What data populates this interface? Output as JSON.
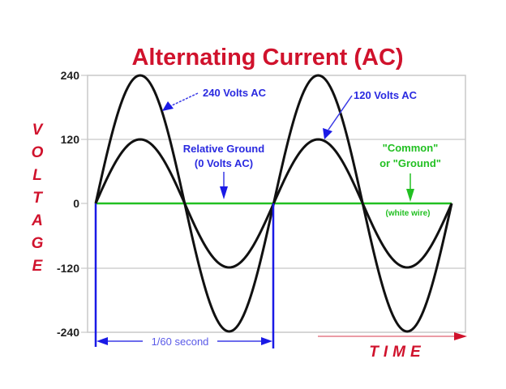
{
  "chart_data": {
    "type": "line",
    "title": "Alternating Current (AC)",
    "xlabel": "TIME",
    "ylabel": "VOLTAGE",
    "yticks": [
      "240",
      "120",
      "0",
      "-120",
      "-240"
    ],
    "ylim": [
      -240,
      240
    ],
    "x_unit": "cycles (1 cycle = 1/60 second)",
    "xlim": [
      0,
      2
    ],
    "grid": true,
    "series": [
      {
        "name": "240 Volts AC",
        "amplitude": 240,
        "cycles": 2,
        "color": "#111111",
        "x": [
          0,
          0.25,
          0.5,
          0.75,
          1.0,
          1.25,
          1.5,
          1.75,
          2.0
        ],
        "values": [
          0,
          240,
          0,
          -240,
          0,
          240,
          0,
          -240,
          0
        ]
      },
      {
        "name": "120 Volts AC",
        "amplitude": 120,
        "cycles": 2,
        "color": "#111111",
        "x": [
          0,
          0.25,
          0.5,
          0.75,
          1.0,
          1.25,
          1.5,
          1.75,
          2.0
        ],
        "values": [
          0,
          120,
          0,
          -120,
          0,
          120,
          0,
          -120,
          0
        ]
      },
      {
        "name": "Relative Ground (0 Volts AC)",
        "amplitude": 0,
        "color": "#22c022",
        "x": [
          0,
          2
        ],
        "values": [
          0,
          0
        ]
      }
    ],
    "annotations": [
      {
        "text": "240 Volts AC",
        "color": "#2a2ae0"
      },
      {
        "text": "120 Volts AC",
        "color": "#2a2ae0"
      },
      {
        "text": "Relative Ground",
        "color": "#2a2ae0"
      },
      {
        "text": "(0 Volts AC)",
        "color": "#2a2ae0"
      },
      {
        "text": "\"Common\"",
        "color": "#22c022"
      },
      {
        "text": "or \"Ground\"",
        "color": "#22c022"
      },
      {
        "text": "(white wire)",
        "color": "#22c022"
      },
      {
        "text": "1/60 second",
        "color": "#5a5ae8"
      }
    ]
  },
  "labels": {
    "title": "Alternating Current (AC)",
    "ylabel_letters": [
      "V",
      "O",
      "L",
      "T",
      "A",
      "G",
      "E"
    ],
    "xlabel": "TIME",
    "ann_240": "240 Volts AC",
    "ann_120": "120 Volts AC",
    "ann_ground_1": "Relative Ground",
    "ann_ground_2": "(0 Volts AC)",
    "ann_common_1": "\"Common\"",
    "ann_common_2": "or \"Ground\"",
    "ann_white": "(white wire)",
    "period": "1/60 second"
  },
  "colors": {
    "title": "#d0122c",
    "curve": "#111111",
    "ground": "#22c022",
    "annotation_blue": "#2a2ae0",
    "grid": "#c8c8c8"
  }
}
